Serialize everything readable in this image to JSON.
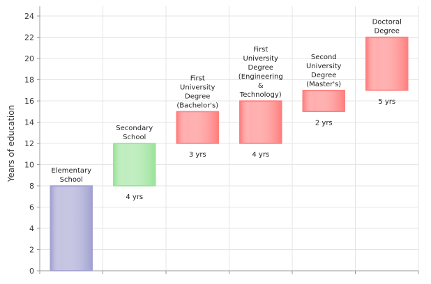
{
  "chart_data": {
    "type": "bar",
    "subtype": "floating-range",
    "ylabel": "Years of education",
    "ylim": [
      0,
      24
    ],
    "yticks": [
      0,
      2,
      4,
      6,
      8,
      10,
      12,
      14,
      16,
      18,
      20,
      22,
      24
    ],
    "grid": true,
    "bars": [
      {
        "label": "Elementary School",
        "lines": [
          "Elementary",
          "School"
        ],
        "start": 0,
        "end": 8,
        "duration_label": "",
        "color": "#a3a3d1"
      },
      {
        "label": "Secondary School",
        "lines": [
          "Secondary",
          "School"
        ],
        "start": 8,
        "end": 12,
        "duration_label": "4 yrs",
        "color": "#9be39b"
      },
      {
        "label": "First University Degree (Bachelor's)",
        "lines": [
          "First",
          "University",
          "Degree",
          "(Bachelor's)"
        ],
        "start": 12,
        "end": 15,
        "duration_label": "3 yrs",
        "color": "#ff8080"
      },
      {
        "label": "First University Degree (Engineering & Technology)",
        "lines": [
          "First",
          "University",
          "Degree",
          "(Engineering",
          "&",
          "Technology)"
        ],
        "start": 12,
        "end": 16,
        "duration_label": "4 yrs",
        "color": "#ff8080"
      },
      {
        "label": "Second University Degree (Master's)",
        "lines": [
          "Second",
          "University",
          "Degree",
          "(Master's)"
        ],
        "start": 15,
        "end": 17,
        "duration_label": "2 yrs",
        "color": "#ff8080"
      },
      {
        "label": "Doctoral Degree",
        "lines": [
          "Doctoral",
          "Degree"
        ],
        "start": 17,
        "end": 22,
        "duration_label": "5 yrs",
        "color": "#ff8080"
      }
    ]
  }
}
